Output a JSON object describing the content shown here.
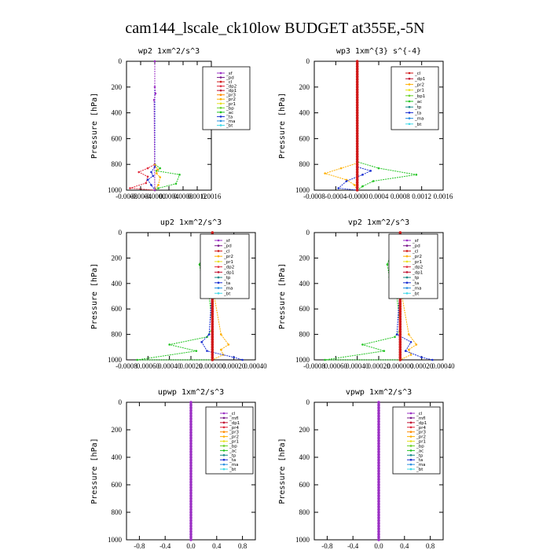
{
  "figure_title": "cam144_lscale_ck10low  BUDGET at355E,-5N",
  "chart_data": [
    {
      "type": "line",
      "title": "wp2   1xm^2/s^3",
      "ylabel": "Pressure [hPa]",
      "xlim": [
        -0.0008,
        0.0016
      ],
      "ylim": [
        1000,
        0
      ],
      "xticks": [
        -0.0008,
        -0.0004,
        0,
        0.0004,
        0.0008,
        0.0012,
        0.0016
      ],
      "xtick_labels": [
        "-0.0008",
        "-0.0004",
        "-0.0000",
        "0.0004",
        "0.0008",
        "0.0012",
        "0.0016"
      ],
      "yticks": [
        0,
        200,
        400,
        600,
        800,
        1000
      ],
      "legend": [
        {
          "name": "_sf",
          "color": "#9b2fc4"
        },
        {
          "name": "_pd",
          "color": "#7a1a8a"
        },
        {
          "name": "_cl",
          "color": "#d11a1a"
        },
        {
          "name": "_dp2",
          "color": "#e0283a"
        },
        {
          "name": "_dp1",
          "color": "#c01030"
        },
        {
          "name": "_pr3",
          "color": "#ff8c00"
        },
        {
          "name": "_pr2",
          "color": "#ffb000"
        },
        {
          "name": "_pr1",
          "color": "#e8e020"
        },
        {
          "name": "_bp",
          "color": "#6ad12a"
        },
        {
          "name": "_ac",
          "color": "#22c422"
        },
        {
          "name": "_ta",
          "color": "#1a2fd1"
        },
        {
          "name": "_ma",
          "color": "#2a90e0"
        },
        {
          "name": "_bt",
          "color": "#40d8e8"
        }
      ],
      "series": [
        {
          "color": "#22c422",
          "x": [
            0,
            0,
            0.00015,
            5e-05,
            0.0007,
            0.0006,
            0.0001,
            0
          ],
          "y": [
            0,
            800,
            830,
            850,
            880,
            950,
            985,
            1000
          ]
        },
        {
          "color": "#e0283a",
          "x": [
            0,
            0,
            -0.0002,
            -0.00045,
            -0.0002,
            -0.00025,
            -0.0007,
            0
          ],
          "y": [
            0,
            800,
            830,
            860,
            895,
            945,
            985,
            1000
          ]
        },
        {
          "color": "#ffb000",
          "x": [
            0,
            0,
            8e-05,
            5e-05,
            0.00015,
            0.0001,
            0
          ],
          "y": [
            0,
            800,
            840,
            870,
            900,
            960,
            1000
          ]
        },
        {
          "color": "#1a2fd1",
          "x": [
            0,
            0,
            -0.0001,
            -5e-05,
            -0.0002,
            -0.0001,
            0
          ],
          "y": [
            0,
            820,
            860,
            890,
            920,
            960,
            1000
          ]
        },
        {
          "color": "#9b2fc4",
          "x": [
            0,
            0,
            2e-05,
            -2e-05,
            0
          ],
          "y": [
            0,
            200,
            250,
            300,
            1000
          ]
        }
      ]
    },
    {
      "type": "line",
      "title": "wp3   1xm^{3} s^{-4}",
      "ylabel": "Pressure [hPa]",
      "xlim": [
        -0.0008,
        0.0016
      ],
      "ylim": [
        1000,
        0
      ],
      "xticks": [
        -0.0008,
        -0.0004,
        0,
        0.0004,
        0.0008,
        0.0012,
        0.0016
      ],
      "xtick_labels": [
        "-0.0008",
        "-0.0004",
        "-0.0000",
        "0.0004",
        "0.0008",
        "0.0012",
        "0.0016"
      ],
      "yticks": [
        0,
        200,
        400,
        600,
        800,
        1000
      ],
      "legend": [
        {
          "name": "_cl",
          "color": "#d11a1a"
        },
        {
          "name": "_dp1",
          "color": "#c01030"
        },
        {
          "name": "_pr2",
          "color": "#ffb000"
        },
        {
          "name": "_pr1",
          "color": "#e8e020"
        },
        {
          "name": "_bp1",
          "color": "#6ad12a"
        },
        {
          "name": "_ac",
          "color": "#22c422"
        },
        {
          "name": "_tp",
          "color": "#1a8a8a"
        },
        {
          "name": "_ta",
          "color": "#1a2fd1"
        },
        {
          "name": "_ma",
          "color": "#2a90e0"
        },
        {
          "name": "_bt",
          "color": "#40d8e8"
        }
      ],
      "series": [
        {
          "color": "#22c422",
          "x": [
            0,
            0,
            0.0004,
            0.0011,
            0.0003,
            0.0001,
            0
          ],
          "y": [
            0,
            780,
            830,
            880,
            930,
            970,
            1000
          ]
        },
        {
          "color": "#ffb000",
          "x": [
            0,
            0,
            -0.0003,
            -0.0006,
            -0.0002,
            -5e-05,
            0
          ],
          "y": [
            0,
            790,
            830,
            870,
            920,
            960,
            1000
          ]
        },
        {
          "color": "#1a2fd1",
          "x": [
            0,
            0,
            0.00025,
            0.0001,
            -0.0002,
            -0.00035,
            0
          ],
          "y": [
            0,
            820,
            850,
            880,
            930,
            985,
            1000
          ]
        },
        {
          "color": "#d11a1a",
          "x": [
            0,
            0
          ],
          "y": [
            0,
            1000
          ]
        }
      ]
    },
    {
      "type": "line",
      "title": "up2   1xm^2/s^3",
      "ylabel": "Pressure [hPa]",
      "xlim": [
        -0.0008,
        0.0004
      ],
      "ylim": [
        1000,
        0
      ],
      "xticks": [
        -0.0008,
        -0.0006,
        -0.0004,
        -0.0002,
        0,
        0.0002,
        0.0004
      ],
      "xtick_labels": [
        "-0.0008",
        "0.00060",
        "0.00040",
        "0.00020",
        "0.000000",
        "0.00020",
        "0.00040"
      ],
      "yticks": [
        0,
        200,
        400,
        600,
        800,
        1000
      ],
      "legend": [
        {
          "name": "_sf",
          "color": "#9b2fc4"
        },
        {
          "name": "_pd",
          "color": "#7a1a8a"
        },
        {
          "name": "_cl",
          "color": "#d11a1a"
        },
        {
          "name": "_pr2",
          "color": "#ffb000"
        },
        {
          "name": "_pr1",
          "color": "#e8e020"
        },
        {
          "name": "_dp2",
          "color": "#e0283a"
        },
        {
          "name": "_dp1",
          "color": "#c01030"
        },
        {
          "name": "_tp",
          "color": "#1a8a8a"
        },
        {
          "name": "_ta",
          "color": "#1a2fd1"
        },
        {
          "name": "_ma",
          "color": "#2a90e0"
        },
        {
          "name": "_bt",
          "color": "#40d8e8"
        }
      ],
      "series": [
        {
          "color": "#22c422",
          "x": [
            0,
            -8e-05,
            -0.00012,
            -0.0001,
            -4e-05,
            0,
            -5e-05,
            -0.0004,
            -0.00015,
            -0.0007,
            0
          ],
          "y": [
            60,
            150,
            250,
            350,
            420,
            750,
            820,
            880,
            930,
            1000,
            1000
          ]
        },
        {
          "color": "#ffb000",
          "x": [
            0,
            8e-05,
            0.0001,
            5e-05,
            0,
            8e-05,
            0.00015,
            8e-05,
            0.0001,
            0
          ],
          "y": [
            60,
            150,
            250,
            350,
            420,
            800,
            880,
            920,
            960,
            1000
          ]
        },
        {
          "color": "#1a2fd1",
          "x": [
            0,
            5e-05,
            3e-05,
            0,
            -3e-05,
            -0.0001,
            -5e-05,
            0.0002,
            0.00028
          ],
          "y": [
            100,
            200,
            300,
            400,
            800,
            860,
            930,
            980,
            1000
          ]
        },
        {
          "color": "#d11a1a",
          "x": [
            0,
            0
          ],
          "y": [
            0,
            1000
          ]
        }
      ]
    },
    {
      "type": "line",
      "title": "vp2   1xm^2/s^3",
      "ylabel": "Pressure [hPa]",
      "xlim": [
        -0.0008,
        0.0004
      ],
      "ylim": [
        1000,
        0
      ],
      "xticks": [
        -0.0008,
        -0.0006,
        -0.0004,
        -0.0002,
        0,
        0.0002,
        0.0004
      ],
      "xtick_labels": [
        "-0.0008",
        "0.00060",
        "0.00040",
        "0.00020",
        "0.000000",
        "0.00020",
        "0.00040"
      ],
      "yticks": [
        0,
        200,
        400,
        600,
        800,
        1000
      ],
      "legend": [
        {
          "name": "_sf",
          "color": "#9b2fc4"
        },
        {
          "name": "_pd",
          "color": "#7a1a8a"
        },
        {
          "name": "_cl",
          "color": "#d11a1a"
        },
        {
          "name": "_pr2",
          "color": "#ffb000"
        },
        {
          "name": "_pr1",
          "color": "#e8e020"
        },
        {
          "name": "_dp2",
          "color": "#e0283a"
        },
        {
          "name": "_dp1",
          "color": "#c01030"
        },
        {
          "name": "_tp",
          "color": "#1a8a8a"
        },
        {
          "name": "_ta",
          "color": "#1a2fd1"
        },
        {
          "name": "_ma",
          "color": "#2a90e0"
        },
        {
          "name": "_bt",
          "color": "#40d8e8"
        }
      ],
      "series": [
        {
          "color": "#22c422",
          "x": [
            0,
            -8e-05,
            -0.00012,
            -0.0001,
            -4e-05,
            0,
            -5e-05,
            -0.00035,
            -0.00015,
            -0.0007,
            0
          ],
          "y": [
            60,
            150,
            250,
            350,
            420,
            760,
            820,
            880,
            930,
            1000,
            1000
          ]
        },
        {
          "color": "#ffb000",
          "x": [
            0,
            8e-05,
            0.0001,
            5e-05,
            0,
            8e-05,
            0.00015,
            8e-05,
            0.0001,
            0
          ],
          "y": [
            60,
            150,
            250,
            350,
            420,
            800,
            880,
            920,
            960,
            1000
          ]
        },
        {
          "color": "#1a2fd1",
          "x": [
            0,
            5e-05,
            3e-05,
            0,
            -3e-05,
            0.0001,
            5e-05,
            0.0002,
            0.0003
          ],
          "y": [
            100,
            200,
            300,
            400,
            800,
            860,
            930,
            980,
            1000
          ]
        },
        {
          "color": "#d11a1a",
          "x": [
            0,
            0
          ],
          "y": [
            0,
            1000
          ]
        }
      ]
    },
    {
      "type": "line",
      "title": "upwp   1xm^2/s^3",
      "ylabel": "Pressure [hPa]",
      "xlim": [
        -1,
        1
      ],
      "ylim": [
        1000,
        0
      ],
      "xticks": [
        -0.8,
        -0.4,
        0,
        0.4,
        0.8
      ],
      "xtick_labels": [
        "-0.8",
        "-0.4",
        "0.0",
        "0.4",
        "0.8"
      ],
      "yticks": [
        0,
        200,
        400,
        600,
        800,
        1000
      ],
      "legend": [
        {
          "name": "_cl",
          "color": "#9b2fc4"
        },
        {
          "name": "_mfl",
          "color": "#7a1a8a"
        },
        {
          "name": "_dp1",
          "color": "#c01030"
        },
        {
          "name": "_pr4",
          "color": "#e0283a"
        },
        {
          "name": "_pr3",
          "color": "#ff8c00"
        },
        {
          "name": "_pr2",
          "color": "#ffb000"
        },
        {
          "name": "_pr1",
          "color": "#e8e020"
        },
        {
          "name": "_bp",
          "color": "#6ad12a"
        },
        {
          "name": "_ac",
          "color": "#22c422"
        },
        {
          "name": "_tp",
          "color": "#1a8a8a"
        },
        {
          "name": "_ta",
          "color": "#1a2fd1"
        },
        {
          "name": "_ma",
          "color": "#2a90e0"
        },
        {
          "name": "_bt",
          "color": "#40d8e8"
        }
      ],
      "series": [
        {
          "color": "#9b2fc4",
          "x": [
            0,
            0
          ],
          "y": [
            0,
            1000
          ]
        }
      ]
    },
    {
      "type": "line",
      "title": "vpwp   1xm^2/s^3",
      "ylabel": "Pressure [hPa]",
      "xlim": [
        -1,
        1
      ],
      "ylim": [
        1000,
        0
      ],
      "xticks": [
        -0.8,
        -0.4,
        0,
        0.4,
        0.8
      ],
      "xtick_labels": [
        "-0.8",
        "-0.4",
        "0.0",
        "0.4",
        "0.8"
      ],
      "yticks": [
        0,
        200,
        400,
        600,
        800,
        1000
      ],
      "legend": [
        {
          "name": "_cl",
          "color": "#9b2fc4"
        },
        {
          "name": "_mfl",
          "color": "#7a1a8a"
        },
        {
          "name": "_dp1",
          "color": "#c01030"
        },
        {
          "name": "_pr4",
          "color": "#e0283a"
        },
        {
          "name": "_pr3",
          "color": "#ff8c00"
        },
        {
          "name": "_pr2",
          "color": "#ffb000"
        },
        {
          "name": "_pr1",
          "color": "#e8e020"
        },
        {
          "name": "_bp",
          "color": "#6ad12a"
        },
        {
          "name": "_ac",
          "color": "#22c422"
        },
        {
          "name": "_tp",
          "color": "#1a8a8a"
        },
        {
          "name": "_ta",
          "color": "#1a2fd1"
        },
        {
          "name": "_ma",
          "color": "#2a90e0"
        },
        {
          "name": "_bt",
          "color": "#40d8e8"
        }
      ],
      "series": [
        {
          "color": "#9b2fc4",
          "x": [
            0,
            0
          ],
          "y": [
            0,
            1000
          ]
        }
      ]
    }
  ]
}
